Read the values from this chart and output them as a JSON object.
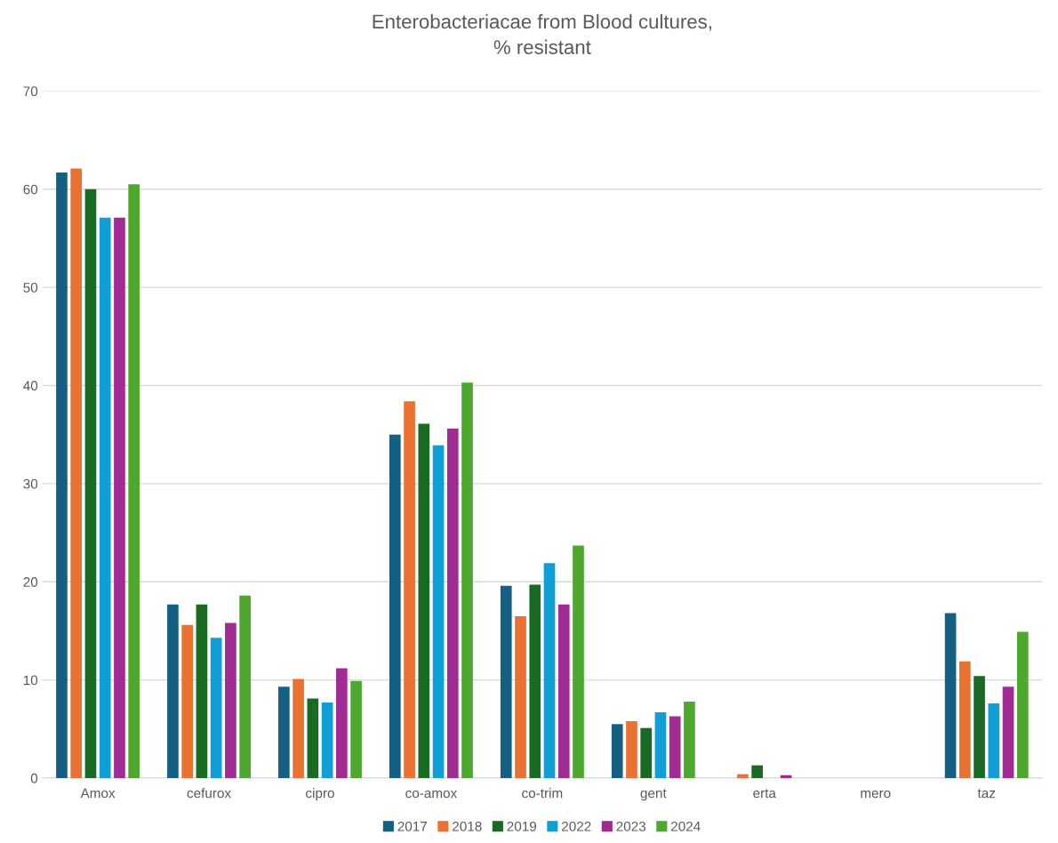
{
  "chart_data": {
    "type": "bar",
    "title": "Enterobacteriacae from Blood cultures,\n% resistant",
    "categories": [
      "Amox",
      "cefurox",
      "cipro",
      "co-amox",
      "co-trim",
      "gent",
      "erta",
      "mero",
      "taz"
    ],
    "series": [
      {
        "name": "2017",
        "color": "#156082",
        "values": [
          61.7,
          17.7,
          9.3,
          35.0,
          19.6,
          5.5,
          0,
          0,
          16.8
        ]
      },
      {
        "name": "2018",
        "color": "#e97132",
        "values": [
          62.1,
          15.6,
          10.1,
          38.4,
          16.5,
          5.8,
          0.4,
          0,
          11.9
        ]
      },
      {
        "name": "2019",
        "color": "#196b24",
        "values": [
          60.0,
          17.7,
          8.1,
          36.1,
          19.7,
          5.1,
          1.3,
          0,
          10.4
        ]
      },
      {
        "name": "2022",
        "color": "#0f9ed5",
        "values": [
          57.1,
          14.3,
          7.7,
          33.9,
          21.9,
          6.7,
          0,
          0,
          7.6
        ]
      },
      {
        "name": "2023",
        "color": "#a02b93",
        "values": [
          57.1,
          15.8,
          11.2,
          35.6,
          17.7,
          6.3,
          0.3,
          0,
          9.3
        ]
      },
      {
        "name": "2024",
        "color": "#4ea72e",
        "values": [
          60.5,
          18.6,
          9.9,
          40.3,
          23.7,
          7.8,
          0,
          0,
          14.9
        ]
      }
    ],
    "ylim": [
      0,
      70
    ],
    "yticks": [
      0,
      10,
      20,
      30,
      40,
      50,
      60,
      70
    ],
    "grid": "y",
    "legend": "bottom"
  }
}
